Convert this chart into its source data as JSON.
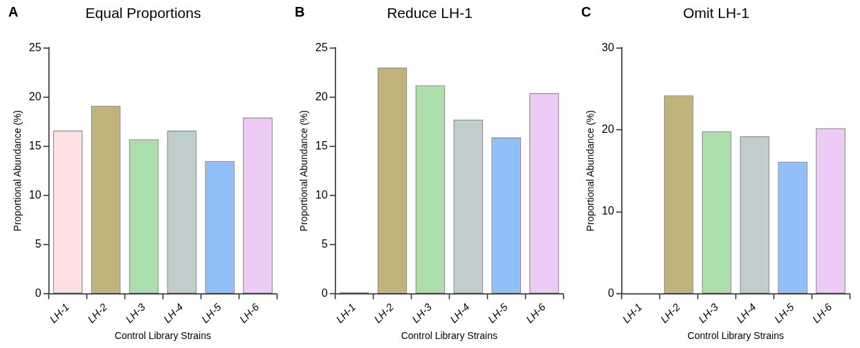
{
  "chart_data": [
    {
      "type": "bar",
      "title": "Equal Proportions",
      "annotations": [
        "A"
      ],
      "xlabel": "Control Library Strains",
      "ylabel": "Proportional Abundance (%)",
      "categories": [
        "LH-1",
        "LH-2",
        "LH-3",
        "LH-4",
        "LH-5",
        "LH-6"
      ],
      "values": [
        16.6,
        19.1,
        15.7,
        16.6,
        13.5,
        17.9
      ],
      "colors": [
        "#fde0e2",
        "#c0b47a",
        "#addfad",
        "#bfcdcc",
        "#90bff9",
        "#eecbf6"
      ],
      "ylim": [
        0,
        25
      ],
      "yticks": [
        0,
        5,
        10,
        15,
        20,
        25
      ],
      "grid": false
    },
    {
      "type": "bar",
      "title": "Reduce LH-1",
      "annotations": [
        "B"
      ],
      "xlabel": "Control Library Strains",
      "ylabel": "Proportional Abundance (%)",
      "categories": [
        "LH-1",
        "LH-2",
        "LH-3",
        "LH-4",
        "LH-5",
        "LH-6"
      ],
      "values": [
        0.15,
        23.0,
        21.2,
        17.7,
        15.9,
        20.4
      ],
      "colors": [
        "#8a8a8a",
        "#c0b47a",
        "#addfad",
        "#bfcdcc",
        "#90bff9",
        "#eecbf6"
      ],
      "ylim": [
        0,
        25
      ],
      "yticks": [
        0,
        5,
        10,
        15,
        20,
        25
      ],
      "grid": false
    },
    {
      "type": "bar",
      "title": "Omit LH-1",
      "annotations": [
        "C"
      ],
      "xlabel": "Control Library Strains",
      "ylabel": "Proportional Abundance (%)",
      "categories": [
        "LH-1",
        "LH-2",
        "LH-3",
        "LH-4",
        "LH-5",
        "LH-6"
      ],
      "values": [
        0,
        24.2,
        19.8,
        19.2,
        16.1,
        20.2
      ],
      "colors": [
        "#fde0e2",
        "#c0b47a",
        "#addfad",
        "#bfcdcc",
        "#90bff9",
        "#eecbf6"
      ],
      "ylim": [
        0,
        30
      ],
      "yticks": [
        0,
        10,
        20,
        30
      ],
      "grid": false
    }
  ]
}
